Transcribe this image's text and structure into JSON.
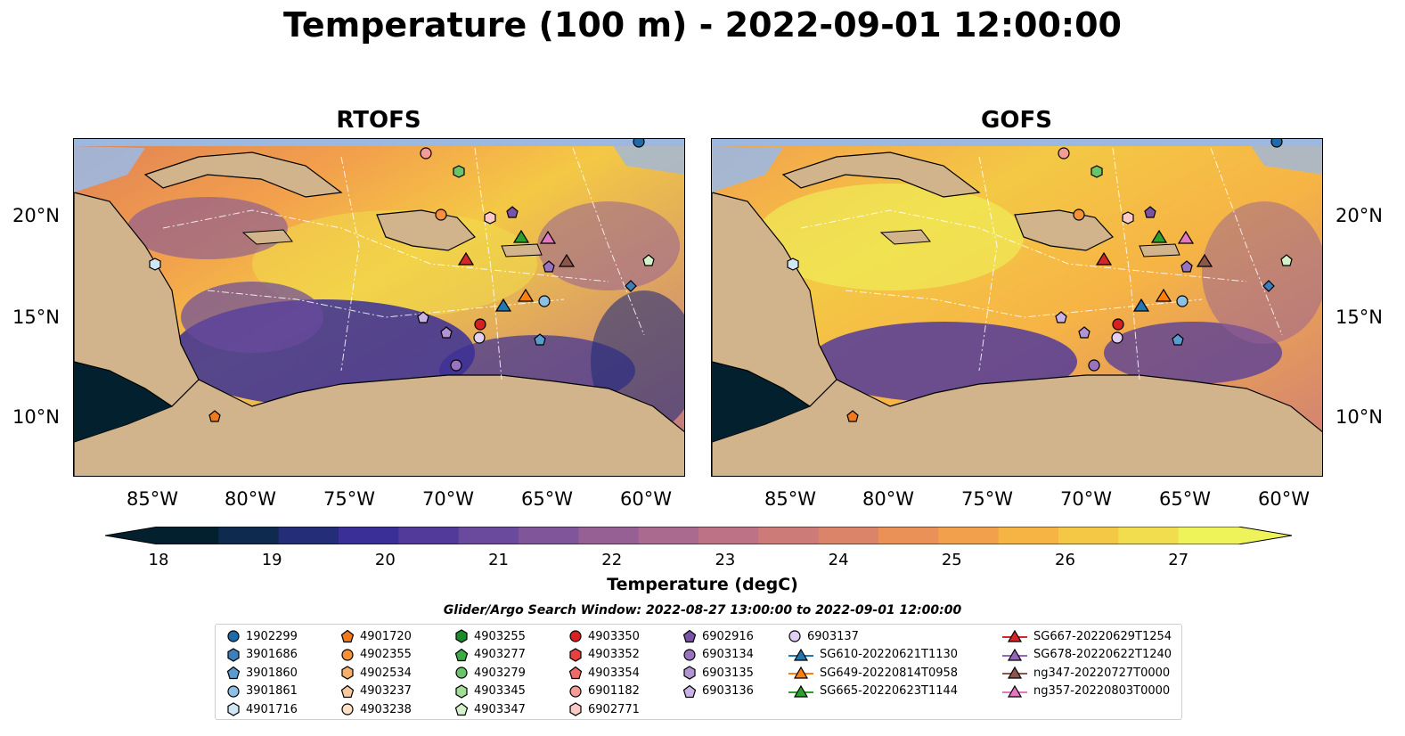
{
  "title": "Temperature (100 m) - 2022-09-01 12:00:00",
  "panels": [
    {
      "title": "RTOFS"
    },
    {
      "title": "GOFS"
    }
  ],
  "axes": {
    "lat_labels": [
      "20°N",
      "15°N",
      "10°N"
    ],
    "lon_labels": [
      "85°W",
      "80°W",
      "75°W",
      "70°W",
      "65°W",
      "60°W"
    ]
  },
  "colorbar": {
    "label": "Temperature (degC)",
    "ticks": [
      "18",
      "19",
      "20",
      "21",
      "22",
      "23",
      "24",
      "25",
      "26",
      "27"
    ],
    "min": 18,
    "max": 27,
    "colors": [
      "#03202f",
      "#0f2a4f",
      "#232d78",
      "#3a2f96",
      "#523a9a",
      "#6a4a9c",
      "#815599",
      "#966095",
      "#aa6a8f",
      "#bd7286",
      "#cd7b79",
      "#dc846a",
      "#ea9158",
      "#f3a04c",
      "#f6b445",
      "#f4c845",
      "#f1dd4d",
      "#eef35a"
    ]
  },
  "search_window": "Glider/Argo Search Window: 2022-08-27 13:00:00 to 2022-09-01 12:00:00",
  "legend": {
    "columns": [
      [
        {
          "label": "1902299",
          "marker": "circle",
          "color": "#1f6aa8"
        },
        {
          "label": "3901686",
          "marker": "hexagon",
          "color": "#3d7fbd"
        },
        {
          "label": "3901860",
          "marker": "pentagon",
          "color": "#5a9bd0"
        },
        {
          "label": "3901861",
          "marker": "circle",
          "color": "#8cc0e4"
        },
        {
          "label": "4901716",
          "marker": "hexagon",
          "color": "#cfe6f5"
        }
      ],
      [
        {
          "label": "4901720",
          "marker": "pentagon",
          "color": "#f07a1b"
        },
        {
          "label": "4902355",
          "marker": "circle",
          "color": "#f5913a"
        },
        {
          "label": "4902534",
          "marker": "hexagon",
          "color": "#f7ad6c"
        },
        {
          "label": "4903237",
          "marker": "pentagon",
          "color": "#f9c89d"
        },
        {
          "label": "4903238",
          "marker": "circle",
          "color": "#fde0c5"
        }
      ],
      [
        {
          "label": "4903255",
          "marker": "hexagon",
          "color": "#1a8a2a"
        },
        {
          "label": "4903277",
          "marker": "pentagon",
          "color": "#3cab45"
        },
        {
          "label": "4903279",
          "marker": "circle",
          "color": "#6cc46a"
        },
        {
          "label": "4903345",
          "marker": "hexagon",
          "color": "#a2dc97"
        },
        {
          "label": "4903347",
          "marker": "pentagon",
          "color": "#d4f1cb"
        }
      ],
      [
        {
          "label": "4903350",
          "marker": "circle",
          "color": "#d62021"
        },
        {
          "label": "4903352",
          "marker": "hexagon",
          "color": "#e4423f"
        },
        {
          "label": "4903354",
          "marker": "pentagon",
          "color": "#ef6b6a"
        },
        {
          "label": "6901182",
          "marker": "circle",
          "color": "#f59b98"
        },
        {
          "label": "6902771",
          "marker": "hexagon",
          "color": "#fbc9c6"
        }
      ],
      [
        {
          "label": "6902916",
          "marker": "pentagon",
          "color": "#7b53a6"
        },
        {
          "label": "6903134",
          "marker": "circle",
          "color": "#9a73c0"
        },
        {
          "label": "6903135",
          "marker": "hexagon",
          "color": "#b394d3"
        },
        {
          "label": "6903136",
          "marker": "pentagon",
          "color": "#cbb2e6"
        }
      ],
      [
        {
          "label": "6903137",
          "marker": "circle",
          "color": "#e2cff4"
        },
        {
          "label": "SG610-20220621T1130",
          "marker": "triangle-line",
          "color": "#1f77b4"
        },
        {
          "label": "SG649-20220814T0958",
          "marker": "triangle-line",
          "color": "#ff7f0e"
        },
        {
          "label": "SG665-20220623T1144",
          "marker": "triangle-line",
          "color": "#2ca02c"
        }
      ],
      [
        {
          "label": "SG667-20220629T1254",
          "marker": "triangle-line",
          "color": "#d62728"
        },
        {
          "label": "SG678-20220622T1240",
          "marker": "triangle-line",
          "color": "#9467bd"
        },
        {
          "label": "ng347-20220727T0000",
          "marker": "triangle-line",
          "color": "#8c564b"
        },
        {
          "label": "ng357-20220803T0000",
          "marker": "triangle-line",
          "color": "#e377c2"
        }
      ]
    ]
  }
}
